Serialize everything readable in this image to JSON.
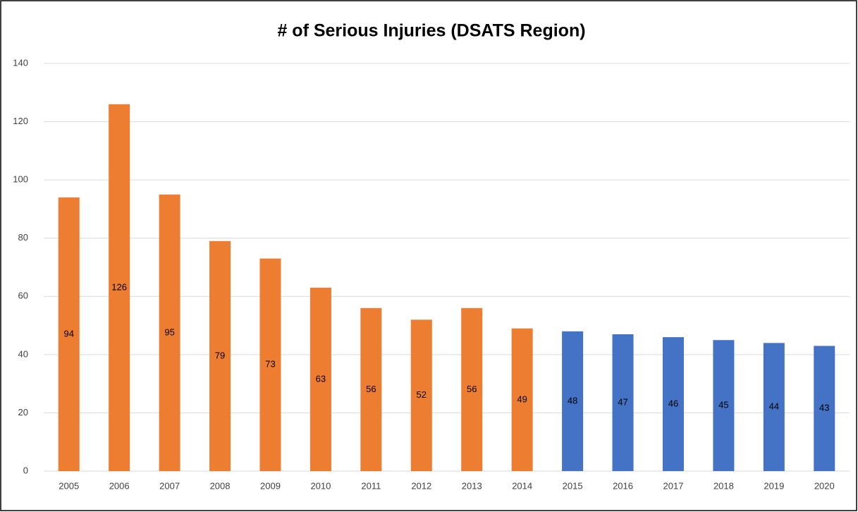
{
  "chart_data": {
    "type": "bar",
    "title": "# of Serious Injuries  (DSATS Region)",
    "categories": [
      "2005",
      "2006",
      "2007",
      "2008",
      "2009",
      "2010",
      "2011",
      "2012",
      "2013",
      "2014",
      "2015",
      "2016",
      "2017",
      "2018",
      "2019",
      "2020"
    ],
    "values": [
      94,
      126,
      95,
      79,
      73,
      63,
      56,
      52,
      56,
      49,
      48,
      47,
      46,
      45,
      44,
      43
    ],
    "colors": [
      "#ed7d31",
      "#ed7d31",
      "#ed7d31",
      "#ed7d31",
      "#ed7d31",
      "#ed7d31",
      "#ed7d31",
      "#ed7d31",
      "#ed7d31",
      "#ed7d31",
      "#4472c4",
      "#4472c4",
      "#4472c4",
      "#4472c4",
      "#4472c4",
      "#4472c4"
    ],
    "ylim": [
      0,
      140
    ],
    "yticks": [
      0,
      20,
      40,
      60,
      80,
      100,
      120,
      140
    ],
    "grid": true
  }
}
